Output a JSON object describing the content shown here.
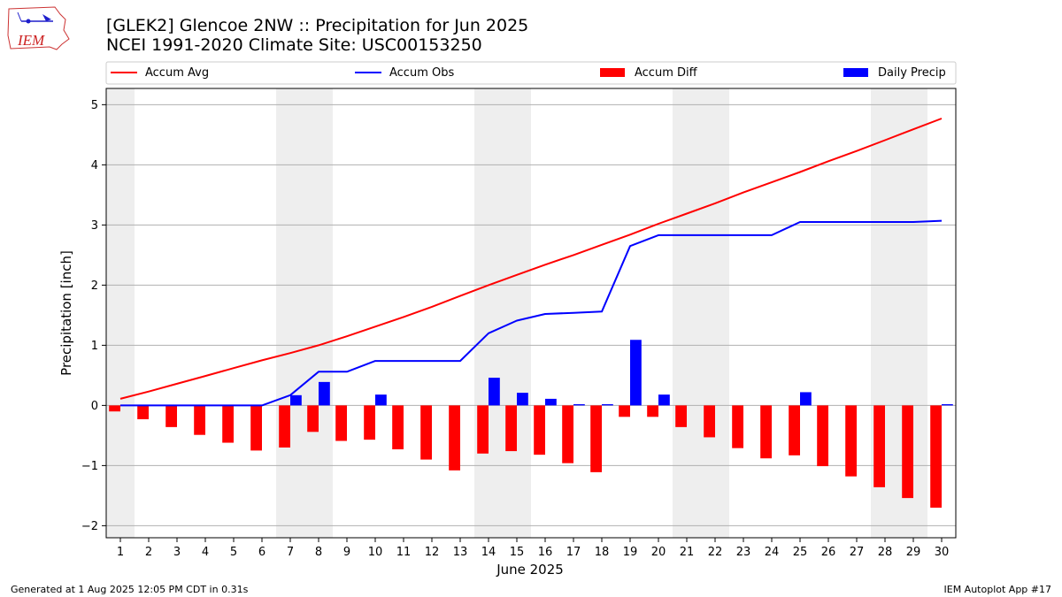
{
  "logo": {
    "text": "IEM"
  },
  "header": {
    "title_line1": "[GLEK2] Glencoe 2NW :: Precipitation for Jun 2025",
    "title_line2": "NCEI 1991-2020 Climate Site: USC00153250"
  },
  "footer": {
    "left": "Generated at 1 Aug 2025 12:05 PM CDT in 0.31s",
    "right": "IEM Autoplot App #17"
  },
  "colors": {
    "avg": "#ff0000",
    "obs": "#0000ff",
    "diff": "#ff0000",
    "daily": "#0000ff",
    "weekend": "#eeeeee",
    "grid": "#b0b0b0"
  },
  "chart_data": {
    "type": "bar",
    "xlabel": "June 2025",
    "ylabel": "Precipitation [inch]",
    "ylim": [
      -2.2,
      5.27
    ],
    "yticks": [
      -2,
      -1,
      0,
      1,
      2,
      3,
      4,
      5
    ],
    "legend": {
      "placement": "top",
      "entries": [
        "Accum Avg",
        "Accum Obs",
        "Accum Diff",
        "Daily Precip"
      ]
    },
    "grid": "horizontal",
    "weekend_days": [
      1,
      7,
      8,
      14,
      15,
      21,
      22,
      28,
      29
    ],
    "days": [
      1,
      2,
      3,
      4,
      5,
      6,
      7,
      8,
      9,
      10,
      11,
      12,
      13,
      14,
      15,
      16,
      17,
      18,
      19,
      20,
      21,
      22,
      23,
      24,
      25,
      26,
      27,
      28,
      29,
      30
    ],
    "series": [
      {
        "name": "Accum Avg",
        "kind": "line",
        "values": [
          0.11,
          0.23,
          0.36,
          0.49,
          0.62,
          0.75,
          0.87,
          1.0,
          1.15,
          1.31,
          1.47,
          1.64,
          1.82,
          2.0,
          2.17,
          2.34,
          2.5,
          2.67,
          2.84,
          3.02,
          3.19,
          3.36,
          3.54,
          3.71,
          3.88,
          4.06,
          4.23,
          4.41,
          4.59,
          4.77
        ]
      },
      {
        "name": "Accum Obs",
        "kind": "line",
        "values": [
          0.0,
          0.0,
          0.0,
          0.0,
          0.0,
          0.0,
          0.17,
          0.56,
          0.56,
          0.74,
          0.74,
          0.74,
          0.74,
          1.2,
          1.41,
          1.52,
          1.54,
          1.56,
          2.65,
          2.83,
          2.83,
          2.83,
          2.83,
          2.83,
          3.05,
          3.05,
          3.05,
          3.05,
          3.05,
          3.07
        ]
      },
      {
        "name": "Accum Diff",
        "kind": "bar",
        "values": [
          -0.1,
          -0.23,
          -0.36,
          -0.49,
          -0.62,
          -0.75,
          -0.7,
          -0.44,
          -0.59,
          -0.57,
          -0.73,
          -0.9,
          -1.08,
          -0.8,
          -0.76,
          -0.82,
          -0.96,
          -1.11,
          -0.19,
          -0.19,
          -0.36,
          -0.53,
          -0.71,
          -0.88,
          -0.83,
          -1.01,
          -1.18,
          -1.36,
          -1.54,
          -1.7
        ]
      },
      {
        "name": "Daily Precip",
        "kind": "bar",
        "values": [
          0,
          0,
          0,
          0,
          0,
          0,
          0.17,
          0.39,
          0,
          0.18,
          0,
          0,
          0,
          0.46,
          0.21,
          0.11,
          0.02,
          0.02,
          1.09,
          0.18,
          0,
          0,
          0,
          0,
          0.22,
          0,
          0,
          0,
          0,
          0.02
        ]
      }
    ]
  }
}
